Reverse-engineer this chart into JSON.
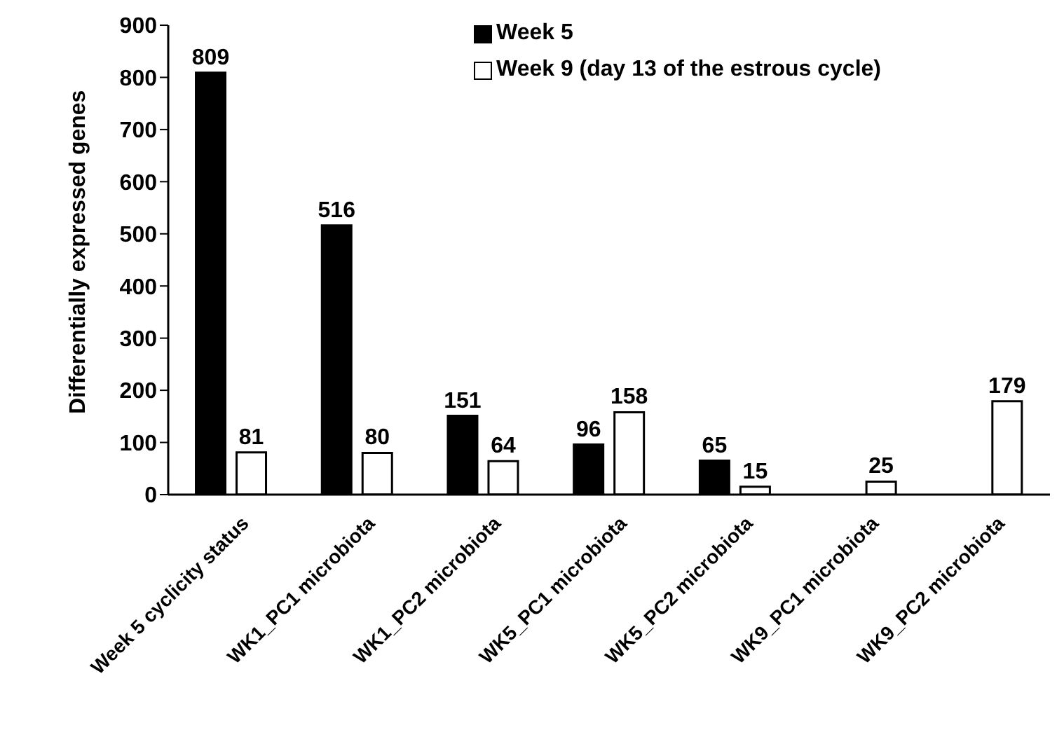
{
  "chart_data": {
    "type": "bar",
    "ylabel": "Differentially expressed genes",
    "categories": [
      "Week 5 cyclicity status",
      "WK1_PC1 microbiota",
      "WK1_PC2 microbiota",
      "WK5_PC1 microbiota",
      "WK5_PC2 microbiota",
      "WK9_PC1 microbiota",
      "WK9_PC2 microbiota"
    ],
    "series": [
      {
        "name": "Week 5",
        "color": "#000000",
        "values": [
          809,
          516,
          151,
          96,
          65,
          null,
          null
        ]
      },
      {
        "name": "Week 9 (day 13 of the estrous cycle)",
        "color": "#ffffff",
        "values": [
          81,
          80,
          64,
          158,
          15,
          25,
          179
        ]
      }
    ],
    "ylim": [
      0,
      900
    ],
    "yticks": [
      0,
      100,
      200,
      300,
      400,
      500,
      600,
      700,
      800,
      900
    ],
    "grid": false,
    "legend": "top right",
    "data_labels": true
  }
}
